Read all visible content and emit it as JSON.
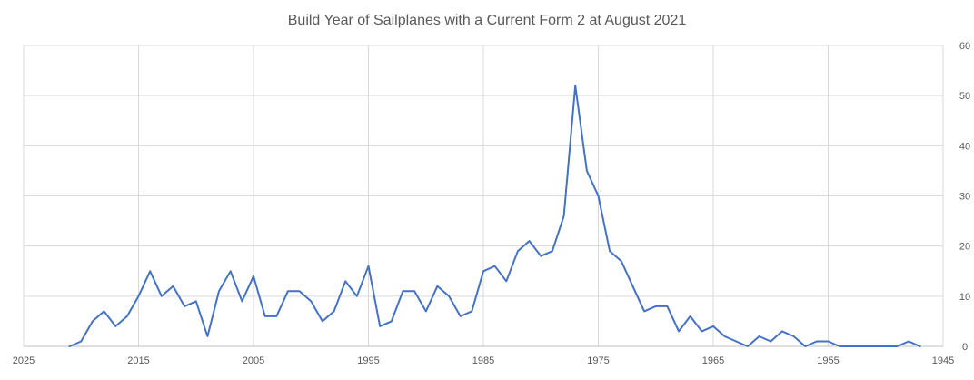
{
  "chart_data": {
    "type": "line",
    "title": "Build Year of Sailplanes with a Current Form 2 at August 2021",
    "xlabel": "",
    "ylabel": "",
    "x_reversed": true,
    "xlim": [
      2025,
      1945
    ],
    "ylim": [
      0,
      60
    ],
    "x_ticks": [
      2025,
      2015,
      2005,
      1995,
      1985,
      1975,
      1965,
      1955,
      1945
    ],
    "y_ticks": [
      0,
      10,
      20,
      30,
      40,
      50,
      60
    ],
    "y_axis_side": "right",
    "grid": true,
    "legend": "none",
    "color": "#4472c4",
    "series": [
      {
        "x": [
          2021,
          2020,
          2019,
          2018,
          2017,
          2016,
          2015,
          2014,
          2013,
          2012,
          2011,
          2010,
          2009,
          2008,
          2007,
          2006,
          2005,
          2004,
          2003,
          2002,
          2001,
          2000,
          1999,
          1998,
          1997,
          1996,
          1995,
          1994,
          1993,
          1992,
          1991,
          1990,
          1989,
          1988,
          1987,
          1986,
          1985,
          1984,
          1983,
          1982,
          1981,
          1980,
          1979,
          1978,
          1977,
          1976,
          1975,
          1974,
          1973,
          1972,
          1971,
          1970,
          1969,
          1968,
          1967,
          1966,
          1965,
          1964,
          1963,
          1962,
          1961,
          1960,
          1959,
          1958,
          1957,
          1956,
          1955,
          1954,
          1953,
          1952,
          1951,
          1950,
          1949,
          1948,
          1947
        ],
        "values": [
          0,
          1,
          5,
          7,
          4,
          6,
          10,
          15,
          10,
          12,
          8,
          9,
          2,
          11,
          15,
          9,
          14,
          6,
          6,
          11,
          11,
          9,
          5,
          7,
          13,
          10,
          16,
          4,
          5,
          11,
          11,
          7,
          12,
          10,
          6,
          7,
          15,
          16,
          13,
          19,
          21,
          18,
          19,
          26,
          52,
          35,
          30,
          19,
          17,
          12,
          7,
          8,
          8,
          3,
          6,
          3,
          4,
          2,
          1,
          0,
          2,
          1,
          3,
          2,
          0,
          1,
          1,
          0,
          0,
          0,
          0,
          0,
          0,
          1,
          0
        ]
      }
    ]
  }
}
